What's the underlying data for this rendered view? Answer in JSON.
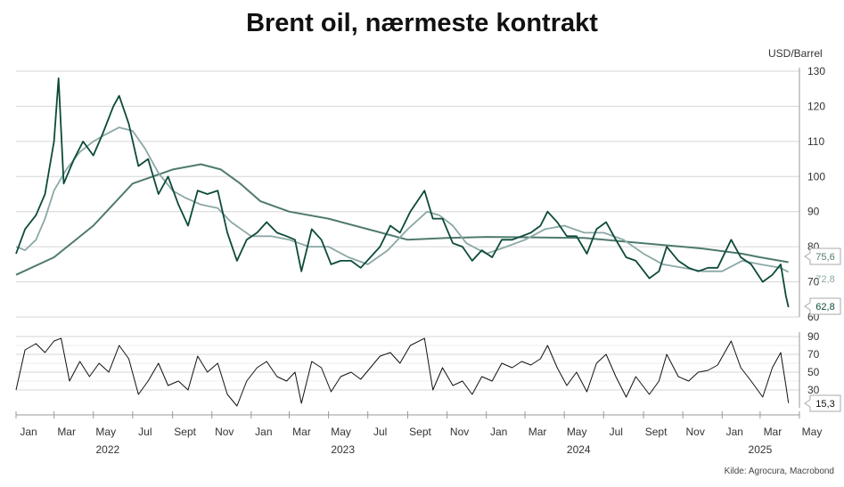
{
  "title": "Brent oil, nærmeste kontrakt",
  "unit_label": "USD/Barrel",
  "source": "Kilde: Agrocura, Macrobond",
  "colors": {
    "price": "#0d4a3a",
    "ma_short": "#8aa8a6",
    "ma_long": "#4f7a6e",
    "indicator": "#111111",
    "grid": "#d6d6d6"
  },
  "chart_data": [
    {
      "type": "line",
      "title": "",
      "ylim": [
        60,
        130
      ],
      "yticks": [
        60,
        70,
        80,
        90,
        100,
        110,
        120,
        130
      ],
      "x_ticks": [
        "Jan",
        "Mar",
        "May",
        "Jul",
        "Sept",
        "Nov",
        "Jan",
        "Mar",
        "May",
        "Jul",
        "Sept",
        "Nov",
        "Jan",
        "Mar",
        "May",
        "Jul",
        "Sept",
        "Nov",
        "Jan",
        "Mar",
        "May"
      ],
      "x_year_labels": [
        "2022",
        "2023",
        "2024",
        "2025"
      ],
      "end_labels": [
        "75,6",
        "72,8",
        "62,8"
      ],
      "series": [
        {
          "key": "price",
          "values": [
            [
              "2022-01-01",
              78
            ],
            [
              "2022-01-15",
              85
            ],
            [
              "2022-02-01",
              89
            ],
            [
              "2022-02-15",
              95
            ],
            [
              "2022-03-01",
              110
            ],
            [
              "2022-03-08",
              128
            ],
            [
              "2022-03-16",
              98
            ],
            [
              "2022-04-01",
              105
            ],
            [
              "2022-04-15",
              110
            ],
            [
              "2022-05-01",
              106
            ],
            [
              "2022-05-15",
              112
            ],
            [
              "2022-06-01",
              120
            ],
            [
              "2022-06-10",
              123
            ],
            [
              "2022-06-25",
              115
            ],
            [
              "2022-07-10",
              103
            ],
            [
              "2022-07-25",
              105
            ],
            [
              "2022-08-10",
              95
            ],
            [
              "2022-08-25",
              100
            ],
            [
              "2022-09-10",
              92
            ],
            [
              "2022-09-25",
              86
            ],
            [
              "2022-10-10",
              96
            ],
            [
              "2022-10-25",
              95
            ],
            [
              "2022-11-10",
              96
            ],
            [
              "2022-11-25",
              84
            ],
            [
              "2022-12-10",
              76
            ],
            [
              "2022-12-25",
              82
            ],
            [
              "2023-01-10",
              84
            ],
            [
              "2023-01-25",
              87
            ],
            [
              "2023-02-10",
              84
            ],
            [
              "2023-02-25",
              83
            ],
            [
              "2023-03-10",
              82
            ],
            [
              "2023-03-20",
              73
            ],
            [
              "2023-04-05",
              85
            ],
            [
              "2023-04-20",
              82
            ],
            [
              "2023-05-05",
              75
            ],
            [
              "2023-05-20",
              76
            ],
            [
              "2023-06-05",
              76
            ],
            [
              "2023-06-20",
              74
            ],
            [
              "2023-07-05",
              77
            ],
            [
              "2023-07-20",
              80
            ],
            [
              "2023-08-05",
              86
            ],
            [
              "2023-08-20",
              84
            ],
            [
              "2023-09-05",
              90
            ],
            [
              "2023-09-27",
              96
            ],
            [
              "2023-10-10",
              88
            ],
            [
              "2023-10-25",
              88
            ],
            [
              "2023-11-10",
              81
            ],
            [
              "2023-11-25",
              80
            ],
            [
              "2023-12-10",
              76
            ],
            [
              "2023-12-25",
              79
            ],
            [
              "2024-01-10",
              77
            ],
            [
              "2024-01-25",
              82
            ],
            [
              "2024-02-10",
              82
            ],
            [
              "2024-02-25",
              83
            ],
            [
              "2024-03-10",
              84
            ],
            [
              "2024-03-25",
              86
            ],
            [
              "2024-04-05",
              90
            ],
            [
              "2024-04-20",
              87
            ],
            [
              "2024-05-05",
              83
            ],
            [
              "2024-05-20",
              83
            ],
            [
              "2024-06-05",
              78
            ],
            [
              "2024-06-20",
              85
            ],
            [
              "2024-07-05",
              87
            ],
            [
              "2024-07-20",
              82
            ],
            [
              "2024-08-05",
              77
            ],
            [
              "2024-08-20",
              76
            ],
            [
              "2024-09-10",
              71
            ],
            [
              "2024-09-25",
              73
            ],
            [
              "2024-10-07",
              80
            ],
            [
              "2024-10-25",
              76
            ],
            [
              "2024-11-10",
              74
            ],
            [
              "2024-11-25",
              73
            ],
            [
              "2024-12-10",
              74
            ],
            [
              "2024-12-25",
              74
            ],
            [
              "2025-01-15",
              82
            ],
            [
              "2025-01-30",
              77
            ],
            [
              "2025-02-15",
              75
            ],
            [
              "2025-03-05",
              70
            ],
            [
              "2025-03-20",
              72
            ],
            [
              "2025-04-02",
              75
            ],
            [
              "2025-04-10",
              66
            ],
            [
              "2025-04-14",
              62.8
            ]
          ]
        },
        {
          "key": "ma_short",
          "values": [
            [
              "2022-01-01",
              80
            ],
            [
              "2022-01-15",
              79
            ],
            [
              "2022-02-01",
              82
            ],
            [
              "2022-02-15",
              88
            ],
            [
              "2022-03-01",
              96
            ],
            [
              "2022-03-20",
              102
            ],
            [
              "2022-04-10",
              107
            ],
            [
              "2022-05-01",
              110
            ],
            [
              "2022-05-20",
              112
            ],
            [
              "2022-06-10",
              114
            ],
            [
              "2022-07-01",
              113
            ],
            [
              "2022-07-20",
              108
            ],
            [
              "2022-08-10",
              101
            ],
            [
              "2022-09-01",
              96
            ],
            [
              "2022-09-20",
              94
            ],
            [
              "2022-10-15",
              92
            ],
            [
              "2022-11-10",
              91
            ],
            [
              "2022-12-01",
              87
            ],
            [
              "2023-01-01",
              83
            ],
            [
              "2023-02-01",
              83
            ],
            [
              "2023-03-01",
              82
            ],
            [
              "2023-04-01",
              80
            ],
            [
              "2023-05-01",
              80
            ],
            [
              "2023-06-01",
              77
            ],
            [
              "2023-07-01",
              75
            ],
            [
              "2023-08-01",
              79
            ],
            [
              "2023-09-01",
              85
            ],
            [
              "2023-10-01",
              90
            ],
            [
              "2023-10-20",
              89
            ],
            [
              "2023-11-10",
              86
            ],
            [
              "2023-12-01",
              81
            ],
            [
              "2024-01-01",
              78
            ],
            [
              "2024-02-01",
              80
            ],
            [
              "2024-03-01",
              82
            ],
            [
              "2024-04-01",
              85
            ],
            [
              "2024-05-01",
              86
            ],
            [
              "2024-06-01",
              84
            ],
            [
              "2024-07-01",
              84
            ],
            [
              "2024-08-01",
              82
            ],
            [
              "2024-09-01",
              78
            ],
            [
              "2024-10-01",
              75
            ],
            [
              "2024-11-01",
              74
            ],
            [
              "2024-12-01",
              73
            ],
            [
              "2025-01-01",
              73
            ],
            [
              "2025-02-01",
              76
            ],
            [
              "2025-03-01",
              75
            ],
            [
              "2025-04-01",
              74
            ],
            [
              "2025-04-14",
              72.8
            ]
          ]
        },
        {
          "key": "ma_long",
          "values": [
            [
              "2022-01-01",
              72
            ],
            [
              "2022-03-01",
              77
            ],
            [
              "2022-05-01",
              86
            ],
            [
              "2022-07-01",
              98
            ],
            [
              "2022-09-01",
              102
            ],
            [
              "2022-10-15",
              103.5
            ],
            [
              "2022-11-15",
              102
            ],
            [
              "2022-12-15",
              98
            ],
            [
              "2023-01-15",
              93
            ],
            [
              "2023-03-01",
              90
            ],
            [
              "2023-05-01",
              88
            ],
            [
              "2023-07-01",
              85
            ],
            [
              "2023-09-01",
              82
            ],
            [
              "2023-11-01",
              82.5
            ],
            [
              "2024-01-01",
              82.8
            ],
            [
              "2024-03-01",
              82.7
            ],
            [
              "2024-06-01",
              82.5
            ],
            [
              "2024-09-01",
              81
            ],
            [
              "2024-12-01",
              79.5
            ],
            [
              "2025-02-01",
              78
            ],
            [
              "2025-03-01",
              77
            ],
            [
              "2025-04-14",
              75.6
            ]
          ]
        }
      ]
    },
    {
      "type": "line",
      "title": "",
      "ylim": [
        10,
        95
      ],
      "yticks": [
        30,
        50,
        70,
        90
      ],
      "end_labels": [
        "15,3"
      ],
      "series": [
        {
          "key": "indicator",
          "values": [
            [
              "2022-01-01",
              30
            ],
            [
              "2022-01-15",
              75
            ],
            [
              "2022-02-01",
              82
            ],
            [
              "2022-02-15",
              72
            ],
            [
              "2022-03-01",
              85
            ],
            [
              "2022-03-12",
              88
            ],
            [
              "2022-03-25",
              40
            ],
            [
              "2022-04-10",
              62
            ],
            [
              "2022-04-25",
              45
            ],
            [
              "2022-05-10",
              60
            ],
            [
              "2022-05-25",
              50
            ],
            [
              "2022-06-10",
              80
            ],
            [
              "2022-06-25",
              65
            ],
            [
              "2022-07-10",
              25
            ],
            [
              "2022-07-25",
              40
            ],
            [
              "2022-08-10",
              60
            ],
            [
              "2022-08-25",
              35
            ],
            [
              "2022-09-10",
              40
            ],
            [
              "2022-09-25",
              30
            ],
            [
              "2022-10-10",
              68
            ],
            [
              "2022-10-25",
              50
            ],
            [
              "2022-11-10",
              60
            ],
            [
              "2022-11-25",
              25
            ],
            [
              "2022-12-10",
              12
            ],
            [
              "2022-12-25",
              40
            ],
            [
              "2023-01-10",
              55
            ],
            [
              "2023-01-25",
              62
            ],
            [
              "2023-02-10",
              45
            ],
            [
              "2023-02-25",
              40
            ],
            [
              "2023-03-10",
              50
            ],
            [
              "2023-03-20",
              15
            ],
            [
              "2023-04-05",
              62
            ],
            [
              "2023-04-20",
              55
            ],
            [
              "2023-05-05",
              28
            ],
            [
              "2023-05-20",
              45
            ],
            [
              "2023-06-05",
              50
            ],
            [
              "2023-06-20",
              42
            ],
            [
              "2023-07-05",
              55
            ],
            [
              "2023-07-20",
              68
            ],
            [
              "2023-08-05",
              72
            ],
            [
              "2023-08-20",
              60
            ],
            [
              "2023-09-05",
              80
            ],
            [
              "2023-09-27",
              88
            ],
            [
              "2023-10-10",
              30
            ],
            [
              "2023-10-25",
              55
            ],
            [
              "2023-11-10",
              35
            ],
            [
              "2023-11-25",
              40
            ],
            [
              "2023-12-10",
              25
            ],
            [
              "2023-12-25",
              45
            ],
            [
              "2024-01-10",
              40
            ],
            [
              "2024-01-25",
              60
            ],
            [
              "2024-02-10",
              55
            ],
            [
              "2024-02-25",
              62
            ],
            [
              "2024-03-10",
              58
            ],
            [
              "2024-03-25",
              65
            ],
            [
              "2024-04-05",
              80
            ],
            [
              "2024-04-20",
              55
            ],
            [
              "2024-05-05",
              35
            ],
            [
              "2024-05-20",
              50
            ],
            [
              "2024-06-05",
              28
            ],
            [
              "2024-06-20",
              60
            ],
            [
              "2024-07-05",
              70
            ],
            [
              "2024-07-20",
              45
            ],
            [
              "2024-08-05",
              22
            ],
            [
              "2024-08-20",
              45
            ],
            [
              "2024-09-10",
              25
            ],
            [
              "2024-09-25",
              40
            ],
            [
              "2024-10-07",
              70
            ],
            [
              "2024-10-25",
              45
            ],
            [
              "2024-11-10",
              40
            ],
            [
              "2024-11-25",
              50
            ],
            [
              "2024-12-10",
              52
            ],
            [
              "2024-12-25",
              58
            ],
            [
              "2025-01-15",
              85
            ],
            [
              "2025-01-30",
              55
            ],
            [
              "2025-02-15",
              40
            ],
            [
              "2025-03-05",
              22
            ],
            [
              "2025-03-20",
              55
            ],
            [
              "2025-04-02",
              72
            ],
            [
              "2025-04-10",
              35
            ],
            [
              "2025-04-14",
              15.3
            ]
          ]
        }
      ]
    }
  ]
}
